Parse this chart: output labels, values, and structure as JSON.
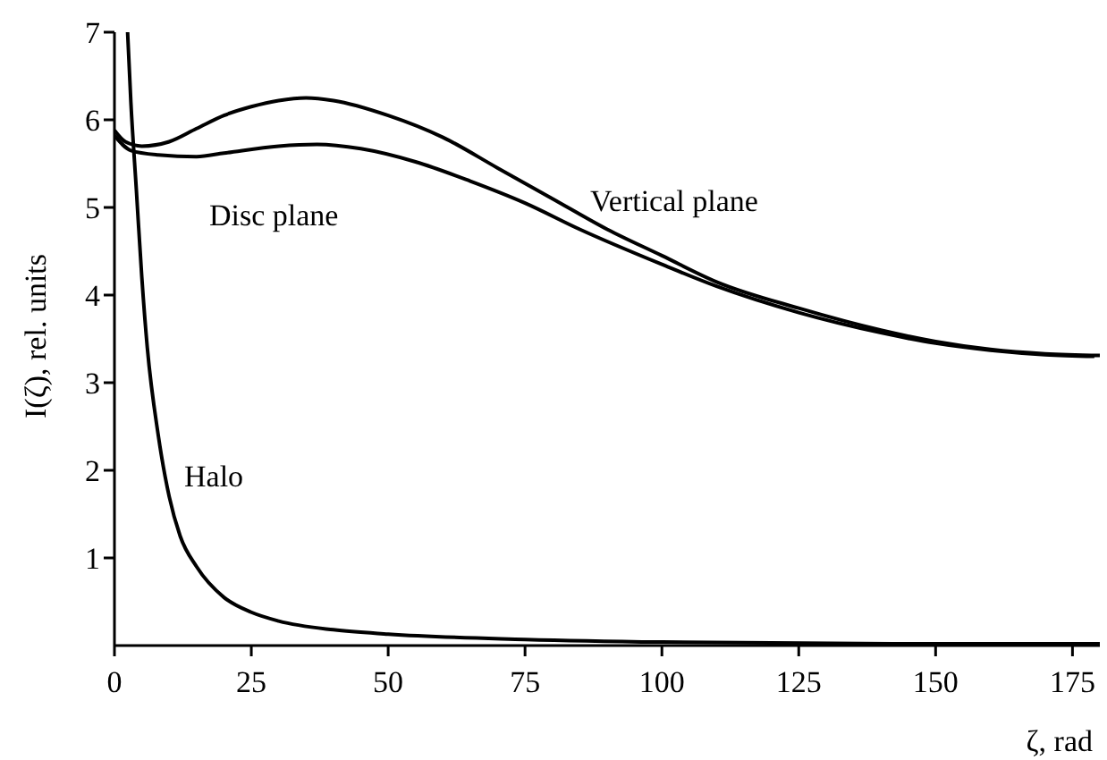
{
  "chart_data": {
    "type": "line",
    "xlabel": "ζ, rad",
    "ylabel": "I(ζ), rel. units",
    "xlim": [
      0,
      180
    ],
    "xticks": [
      0,
      25,
      50,
      75,
      100,
      125,
      150,
      175
    ],
    "ylim": [
      0,
      7
    ],
    "yticks": [
      1,
      2,
      3,
      4,
      5,
      6,
      7
    ],
    "marker": "none",
    "line_style": "solid",
    "series": [
      {
        "color": "#000000",
        "x": [
          0,
          2,
          5,
          10,
          15,
          20,
          25,
          30,
          35,
          40,
          50,
          60,
          70,
          80,
          90,
          100,
          110,
          125,
          140,
          150,
          160,
          170,
          180
        ],
        "values": [
          5.88,
          5.75,
          5.7,
          5.75,
          5.9,
          6.05,
          6.15,
          6.22,
          6.25,
          6.22,
          6.05,
          5.8,
          5.45,
          5.1,
          4.75,
          4.45,
          4.15,
          3.85,
          3.6,
          3.47,
          3.38,
          3.33,
          3.31
        ]
      },
      {
        "color": "#000000",
        "x": [
          0,
          3,
          8,
          15,
          20,
          30,
          37,
          45,
          55,
          65,
          75,
          85,
          100,
          110,
          125,
          140,
          150,
          160,
          170,
          179
        ],
        "values": [
          5.82,
          5.65,
          5.6,
          5.58,
          5.62,
          5.7,
          5.72,
          5.67,
          5.52,
          5.3,
          5.05,
          4.75,
          4.35,
          4.1,
          3.8,
          3.57,
          3.45,
          3.37,
          3.32,
          3.3
        ]
      },
      {
        "color": "#000000",
        "x": [
          2.4,
          3,
          4,
          5,
          6,
          8,
          10,
          12,
          15,
          20,
          25,
          30,
          40,
          50,
          75,
          100,
          150,
          180
        ],
        "values": [
          7,
          6.2,
          5.2,
          4.2,
          3.4,
          2.4,
          1.7,
          1.25,
          0.9,
          0.55,
          0.38,
          0.28,
          0.18,
          0.13,
          0.07,
          0.04,
          0.02,
          0.02
        ]
      }
    ],
    "annotations": [
      "Vertical plane",
      "Disc plane",
      "Halo"
    ]
  }
}
